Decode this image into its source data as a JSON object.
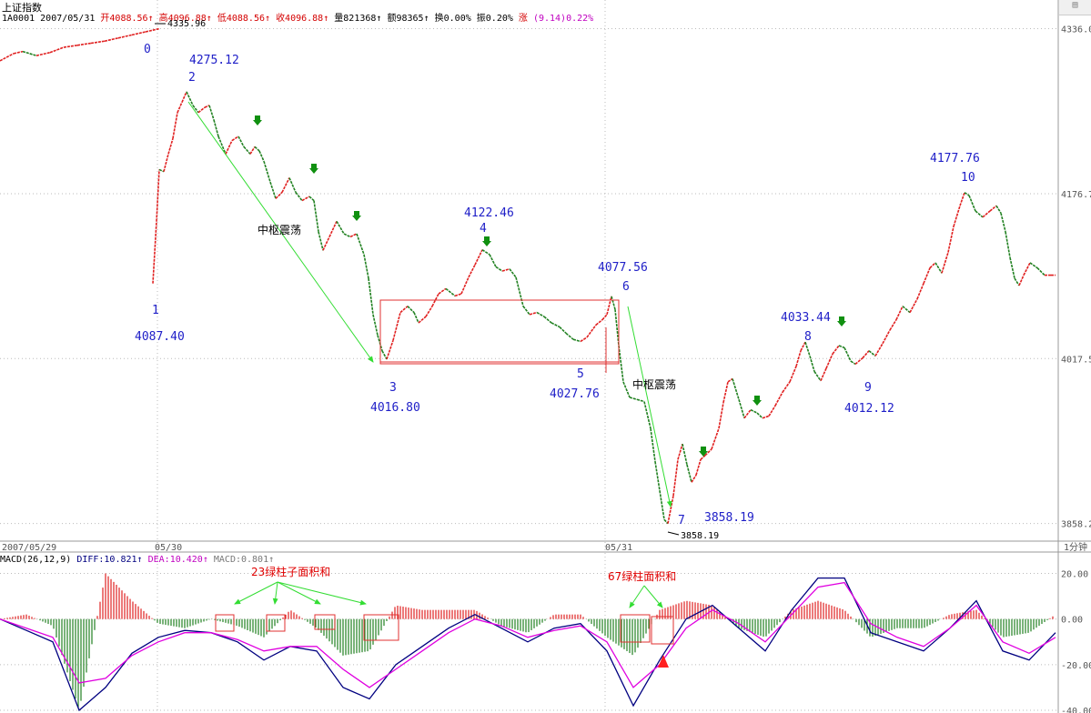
{
  "header": {
    "title": "上证指数",
    "code": "1A0001",
    "date": "2007/05/31",
    "open": "开4088.56",
    "high": "高4096.88",
    "low": "低4088.56",
    "close": "收4096.88",
    "volume": "量821368",
    "amount": "额98365",
    "turnover": "换0.00%",
    "amplitude": "振0.20%",
    "change_label": "涨",
    "change_value": "(9.14)0.22%"
  },
  "macd_header": {
    "name": "MACD(26,12,9)",
    "diff": "DIFF:10.821",
    "dea": "DEA:10.420",
    "macd": "MACD:0.801"
  },
  "period_label": "1分钟",
  "colors": {
    "up": "#e02020",
    "down": "#208020",
    "diff": "#000080",
    "dea": "#e000e0",
    "box": "#e03030",
    "arrow": "#33dd33"
  },
  "chart_data": [
    {
      "type": "line",
      "series": [
        {
          "name": "",
          "points": [
            [
              0,
              4305
            ],
            [
              15,
              4312
            ],
            [
              25,
              4314
            ],
            [
              40,
              4310
            ],
            [
              55,
              4313
            ],
            [
              70,
              4318
            ],
            [
              85,
              4320
            ],
            [
              100,
              4322
            ],
            [
              115,
              4324
            ],
            [
              130,
              4327
            ],
            [
              145,
              4330
            ],
            [
              160,
              4333
            ],
            [
              175,
              4335.96
            ],
            [
              168,
              4090
            ],
            [
              172,
              4150
            ],
            [
              175,
              4200
            ],
            [
              180,
              4198
            ],
            [
              185,
              4215
            ],
            [
              190,
              4230
            ],
            [
              195,
              4255
            ],
            [
              200,
              4265
            ],
            [
              205,
              4275.12
            ],
            [
              212,
              4262
            ],
            [
              218,
              4255
            ],
            [
              225,
              4260
            ],
            [
              230,
              4262
            ],
            [
              235,
              4248
            ],
            [
              240,
              4232
            ],
            [
              248,
              4215
            ],
            [
              255,
              4228
            ],
            [
              262,
              4232
            ],
            [
              268,
              4222
            ],
            [
              275,
              4215
            ],
            [
              280,
              4222
            ],
            [
              285,
              4218
            ],
            [
              290,
              4208
            ],
            [
              297,
              4188
            ],
            [
              303,
              4172
            ],
            [
              310,
              4178
            ],
            [
              318,
              4192
            ],
            [
              325,
              4178
            ],
            [
              332,
              4170
            ],
            [
              340,
              4174
            ],
            [
              345,
              4170
            ],
            [
              350,
              4140
            ],
            [
              355,
              4122
            ],
            [
              362,
              4135
            ],
            [
              370,
              4150
            ],
            [
              378,
              4138
            ],
            [
              385,
              4135
            ],
            [
              392,
              4138
            ],
            [
              400,
              4118
            ],
            [
              405,
              4095
            ],
            [
              410,
              4060
            ],
            [
              415,
              4040
            ],
            [
              420,
              4025
            ],
            [
              425,
              4016.8
            ],
            [
              432,
              4035
            ],
            [
              440,
              4062
            ],
            [
              448,
              4068
            ],
            [
              455,
              4062
            ],
            [
              460,
              4052
            ],
            [
              468,
              4058
            ],
            [
              475,
              4068
            ],
            [
              482,
              4080
            ],
            [
              490,
              4085
            ],
            [
              500,
              4078
            ],
            [
              507,
              4080
            ],
            [
              515,
              4096
            ],
            [
              522,
              4108
            ],
            [
              530,
              4122.46
            ],
            [
              538,
              4118
            ],
            [
              545,
              4106
            ],
            [
              552,
              4102
            ],
            [
              560,
              4104
            ],
            [
              567,
              4096
            ],
            [
              575,
              4068
            ],
            [
              582,
              4060
            ],
            [
              590,
              4062
            ],
            [
              598,
              4058
            ],
            [
              606,
              4052
            ],
            [
              615,
              4048
            ],
            [
              622,
              4042
            ],
            [
              630,
              4036
            ],
            [
              638,
              4034
            ],
            [
              645,
              4038
            ],
            [
              655,
              4050
            ],
            [
              662,
              4055
            ],
            [
              667,
              4060
            ],
            [
              672,
              4077.56
            ],
            [
              676,
              4065
            ],
            [
              680,
              4030
            ],
            [
              685,
              3995
            ],
            [
              692,
              3980
            ],
            [
              700,
              3978
            ],
            [
              708,
              3976
            ],
            [
              715,
              3950
            ],
            [
              720,
              3918
            ],
            [
              725,
              3890
            ],
            [
              730,
              3862
            ],
            [
              734,
              3858.19
            ],
            [
              740,
              3885
            ],
            [
              745,
              3920
            ],
            [
              750,
              3935
            ],
            [
              755,
              3915
            ],
            [
              760,
              3898
            ],
            [
              765,
              3905
            ],
            [
              770,
              3920
            ],
            [
              775,
              3924
            ],
            [
              782,
              3930
            ],
            [
              790,
              3950
            ],
            [
              795,
              3975
            ],
            [
              800,
              3995
            ],
            [
              805,
              3998
            ],
            [
              812,
              3978
            ],
            [
              818,
              3960
            ],
            [
              825,
              3968
            ],
            [
              832,
              3965
            ],
            [
              838,
              3960
            ],
            [
              845,
              3962
            ],
            [
              852,
              3972
            ],
            [
              860,
              3985
            ],
            [
              868,
              3995
            ],
            [
              875,
              4010
            ],
            [
              880,
              4025
            ],
            [
              885,
              4033.44
            ],
            [
              890,
              4020
            ],
            [
              895,
              4005
            ],
            [
              902,
              3996
            ],
            [
              908,
              4008
            ],
            [
              915,
              4022
            ],
            [
              922,
              4030
            ],
            [
              928,
              4028
            ],
            [
              935,
              4015
            ],
            [
              940,
              4012.12
            ],
            [
              948,
              4018
            ],
            [
              955,
              4025
            ],
            [
              962,
              4020
            ],
            [
              970,
              4032
            ],
            [
              978,
              4045
            ],
            [
              985,
              4055
            ],
            [
              992,
              4068
            ],
            [
              1000,
              4062
            ],
            [
              1008,
              4075
            ],
            [
              1015,
              4090
            ],
            [
              1022,
              4105
            ],
            [
              1028,
              4110
            ],
            [
              1035,
              4100
            ],
            [
              1042,
              4120
            ],
            [
              1048,
              4145
            ],
            [
              1055,
              4165
            ],
            [
              1060,
              4177.76
            ],
            [
              1065,
              4175
            ],
            [
              1072,
              4160
            ],
            [
              1080,
              4154
            ],
            [
              1088,
              4160
            ],
            [
              1095,
              4165
            ],
            [
              1100,
              4158
            ],
            [
              1105,
              4140
            ],
            [
              1110,
              4115
            ],
            [
              1115,
              4095
            ],
            [
              1120,
              4088
            ],
            [
              1125,
              4098
            ],
            [
              1132,
              4110
            ],
            [
              1140,
              4105
            ],
            [
              1148,
              4098
            ],
            [
              1155,
              4098
            ],
            [
              1160,
              4098
            ]
          ]
        }
      ],
      "ylim": [
        3850,
        4340
      ],
      "yticks": [
        "4336.0",
        "4176.7",
        "4017.5",
        "3858.2"
      ],
      "xticks": [
        "2007/05/29",
        "05/30",
        "05/31"
      ],
      "annotations": {
        "wave_labels": [
          {
            "n": "0",
            "price": ""
          },
          {
            "n": "1",
            "price": "4087.40"
          },
          {
            "n": "2",
            "price": "4275.12"
          },
          {
            "n": "3",
            "price": "4016.80"
          },
          {
            "n": "4",
            "price": "4122.46"
          },
          {
            "n": "5",
            "price": "4027.76"
          },
          {
            "n": "6",
            "price": "4077.56"
          },
          {
            "n": "7",
            "price": "3858.19"
          },
          {
            "n": "8",
            "price": "4033.44"
          },
          {
            "n": "9",
            "price": "4012.12"
          },
          {
            "n": "10",
            "price": "4177.76"
          }
        ],
        "text": [
          "中枢震荡",
          "中枢震荡"
        ],
        "price_tags": [
          "4335.96",
          "3858.19"
        ]
      }
    },
    {
      "type": "bar",
      "series": [
        {
          "name": "DIFF",
          "values": [
            0,
            -5,
            -10,
            -40,
            -30,
            -15,
            -8,
            -5,
            -6,
            -10,
            -18,
            -12,
            -14,
            -30,
            -35,
            -20,
            -12,
            -4,
            2,
            -4,
            -10,
            -4,
            -2,
            -14,
            -38,
            -18,
            0,
            6,
            -4,
            -14,
            4,
            18,
            18,
            -6,
            -10,
            -14,
            -4,
            8,
            -14,
            -18,
            -6
          ]
        },
        {
          "name": "DEA",
          "values": [
            0,
            -4,
            -8,
            -28,
            -26,
            -16,
            -10,
            -6,
            -6,
            -9,
            -14,
            -12,
            -12,
            -22,
            -30,
            -22,
            -14,
            -6,
            0,
            -3,
            -8,
            -5,
            -3,
            -10,
            -30,
            -20,
            -4,
            4,
            -2,
            -10,
            2,
            14,
            16,
            -2,
            -8,
            -12,
            -4,
            6,
            -10,
            -15,
            -8
          ]
        },
        {
          "name": "MACD",
          "values": [
            0,
            2,
            -3,
            -40,
            20,
            8,
            -2,
            -4,
            0,
            -3,
            -8,
            4,
            -4,
            -16,
            -14,
            6,
            4,
            4,
            4,
            -3,
            -6,
            2,
            2,
            -8,
            -16,
            4,
            8,
            6,
            -4,
            -8,
            4,
            8,
            4,
            -8,
            -4,
            -4,
            2,
            4,
            -8,
            -6,
            2
          ]
        }
      ],
      "ylim": [
        -40,
        25
      ],
      "yticks": [
        "20.00",
        "0.00",
        "-20.00",
        "-40.00"
      ],
      "annotations": {
        "text": [
          "23绿柱子面积和",
          "67绿柱面积和"
        ]
      }
    }
  ]
}
